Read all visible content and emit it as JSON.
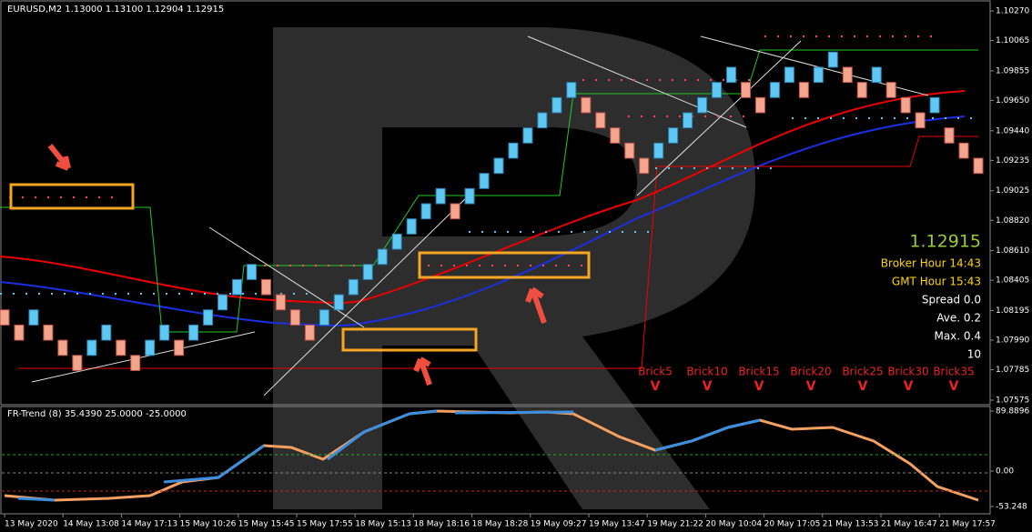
{
  "header": {
    "title": "EURUSD,M2  1.13000 1.13100 1.12904 1.12915"
  },
  "chart": {
    "up_color": "#5ec8f2",
    "down_color": "#f4a68c",
    "ylim": [
      1.07575,
      1.1027
    ],
    "yticks": [
      {
        "value": 1.1027,
        "label": "1.10270"
      },
      {
        "value": 1.10065,
        "label": "1.10065"
      },
      {
        "value": 1.09855,
        "label": "1.09855"
      },
      {
        "value": 1.0965,
        "label": "1.09650"
      },
      {
        "value": 1.0944,
        "label": "1.09440"
      },
      {
        "value": 1.09235,
        "label": "1.09235"
      },
      {
        "value": 1.09025,
        "label": "1.09025"
      },
      {
        "value": 1.0882,
        "label": "1.08820"
      },
      {
        "value": 1.0861,
        "label": "1.08610"
      },
      {
        "value": 1.08405,
        "label": "1.08405"
      },
      {
        "value": 1.08195,
        "label": "1.08195"
      },
      {
        "value": 1.0799,
        "label": "1.07990"
      },
      {
        "value": 1.07785,
        "label": "1.07785"
      },
      {
        "value": 1.07575,
        "label": "1.07575"
      }
    ],
    "bricks": [
      [
        1.082,
        1.08095
      ],
      [
        1.08095,
        1.0799
      ],
      [
        1.08095,
        1.082
      ],
      [
        1.08095,
        1.0799
      ],
      [
        1.0799,
        1.07885
      ],
      [
        1.07885,
        1.0778
      ],
      [
        1.07885,
        1.0799
      ],
      [
        1.0799,
        1.08095
      ],
      [
        1.0799,
        1.07885
      ],
      [
        1.07885,
        1.0778
      ],
      [
        1.07885,
        1.0799
      ],
      [
        1.0799,
        1.08095
      ],
      [
        1.0799,
        1.07885
      ],
      [
        1.0799,
        1.08095
      ],
      [
        1.08095,
        1.082
      ],
      [
        1.082,
        1.08305
      ],
      [
        1.08305,
        1.0841
      ],
      [
        1.0841,
        1.08515
      ],
      [
        1.0841,
        1.08305
      ],
      [
        1.08305,
        1.082
      ],
      [
        1.082,
        1.08095
      ],
      [
        1.08095,
        1.0799
      ],
      [
        1.08095,
        1.082
      ],
      [
        1.082,
        1.08305
      ],
      [
        1.08305,
        1.0841
      ],
      [
        1.0841,
        1.08515
      ],
      [
        1.08515,
        1.0862
      ],
      [
        1.0862,
        1.08725
      ],
      [
        1.08725,
        1.0883
      ],
      [
        1.0883,
        1.08935
      ],
      [
        1.08935,
        1.0904
      ],
      [
        1.08935,
        1.0883
      ],
      [
        1.08935,
        1.0904
      ],
      [
        1.0904,
        1.09145
      ],
      [
        1.09145,
        1.0925
      ],
      [
        1.0925,
        1.09355
      ],
      [
        1.09355,
        1.0946
      ],
      [
        1.0946,
        1.09565
      ],
      [
        1.09565,
        1.0967
      ],
      [
        1.0967,
        1.09775
      ],
      [
        1.0967,
        1.09565
      ],
      [
        1.09565,
        1.0946
      ],
      [
        1.0946,
        1.09355
      ],
      [
        1.09355,
        1.0925
      ],
      [
        1.0925,
        1.09145
      ],
      [
        1.0925,
        1.09355
      ],
      [
        1.09355,
        1.0946
      ],
      [
        1.0946,
        1.09565
      ],
      [
        1.09565,
        1.0967
      ],
      [
        1.0967,
        1.09775
      ],
      [
        1.09775,
        1.0988
      ],
      [
        1.09775,
        1.0967
      ],
      [
        1.0967,
        1.09565
      ],
      [
        1.0967,
        1.09775
      ],
      [
        1.09775,
        1.0988
      ],
      [
        1.09775,
        1.0967
      ],
      [
        1.09775,
        1.0988
      ],
      [
        1.0988,
        1.09985
      ],
      [
        1.0988,
        1.09775
      ],
      [
        1.09775,
        1.0967
      ],
      [
        1.09775,
        1.0988
      ],
      [
        1.09775,
        1.0967
      ],
      [
        1.0967,
        1.09565
      ],
      [
        1.09565,
        1.0946
      ],
      [
        1.09565,
        1.0967
      ],
      [
        1.0946,
        1.09355
      ],
      [
        1.09355,
        1.0925
      ],
      [
        1.0925,
        1.09145
      ]
    ]
  },
  "info": {
    "price": "1.12915",
    "broker_hour": "Broker Hour  14:43",
    "gmt_hour": "GMT Hour  15:43",
    "spread": "Spread 0.0",
    "ave": "Ave. 0.2",
    "max": "Max. 0.4",
    "count": "10"
  },
  "bricks_labels": [
    "Brick5",
    "Brick10",
    "Brick15",
    "Brick20",
    "Brick25",
    "Brick30",
    "Brick35"
  ],
  "signal": "V",
  "indicator": {
    "title": "FR-Trend (8) 35.4390 25.0000 -25.0000",
    "ylim": [
      -53.248,
      89.8896
    ],
    "yticks": [
      89.8896,
      {
        "value": 0,
        "label": "0.00"
      },
      -53.248
    ]
  },
  "time_labels": [
    "13 May 2020",
    "14 May 13:08",
    "14 May 17:13",
    "15 May 10:26",
    "15 May 15:45",
    "15 May 17:55",
    "18 May 15:13",
    "18 May 18:16",
    "18 May 18:28",
    "19 May 09:27",
    "19 May 13:47",
    "19 May 21:22",
    "20 May 10:04",
    "20 May 17:05",
    "21 May 13:53",
    "21 May 16:47",
    "21 May 17:57"
  ]
}
